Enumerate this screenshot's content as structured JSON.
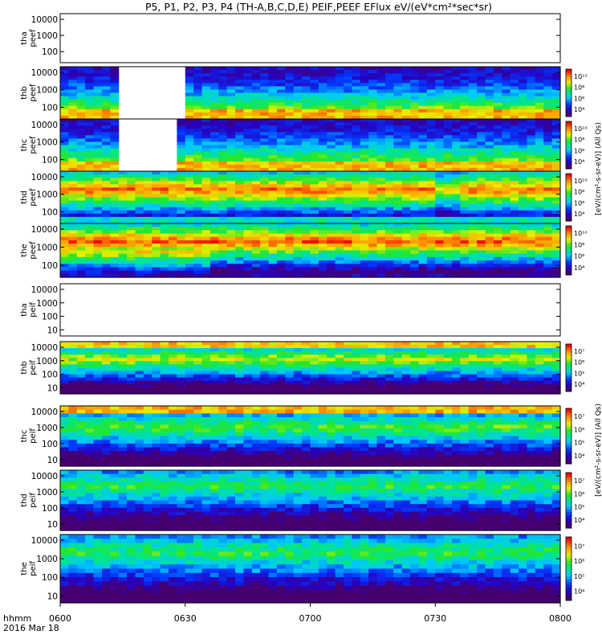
{
  "chart_data": {
    "type": "heatmap",
    "title": "P5, P1, P2, P3, P4 (TH-A,B,C,D,E) PEIF,PEEF EFlux eV/(eV*cm²*sec*sr)",
    "x_ticks": [
      "0600",
      "0630",
      "0700",
      "0730",
      "0800"
    ],
    "x_ticks_minutes": [
      360,
      390,
      420,
      450,
      480
    ],
    "xlim": [
      360,
      480
    ],
    "x_prefix": "hhmm",
    "date_label": "2016 Mar 18",
    "scale": "log",
    "colorbar_ticks_electron": [
      "10⁴",
      "10⁶",
      "10⁸",
      "10¹⁰"
    ],
    "colorbar_ticks_ion": [
      "10⁴",
      "10⁵",
      "10⁶",
      "10⁷"
    ],
    "colorbar_label_electron": "[eV/(cm²-s-sr-eV)] (All Qs)",
    "colorbar_label_ion": "[eV/(cm²-s-sr-eV)] (All Qs)",
    "panels": [
      {
        "probe": "tha",
        "label": "tha peef",
        "y_ticks": [
          "10000",
          "1000",
          "100"
        ],
        "data": false
      },
      {
        "probe": "thb",
        "label": "thb peef",
        "y_ticks": [
          "10000",
          "1000",
          "100"
        ],
        "data": true,
        "gaps": [
          [
            373.5,
            389
          ]
        ]
      },
      {
        "probe": "thc",
        "label": "thc peef",
        "y_ticks": [
          "10000",
          "1000",
          "100"
        ],
        "data": true,
        "gaps": [
          [
            373.5,
            388
          ]
        ]
      },
      {
        "probe": "thd",
        "label": "thd peef",
        "y_ticks": [
          "10000",
          "1000",
          "100"
        ],
        "data": true,
        "gaps": []
      },
      {
        "probe": "the",
        "label": "the peef",
        "y_ticks": [
          "10000",
          "1000",
          "100"
        ],
        "data": true,
        "gaps": []
      },
      {
        "probe": "tha",
        "label": "tha peif",
        "y_ticks": [
          "10000",
          "1000",
          "100",
          "10"
        ],
        "data": false
      },
      {
        "probe": "thb",
        "label": "thb peif",
        "y_ticks": [
          "10000",
          "1000",
          "100",
          "10"
        ],
        "data": true,
        "gaps": []
      },
      {
        "probe": "thc",
        "label": "thc peif",
        "y_ticks": [
          "10000",
          "1000",
          "100",
          "10"
        ],
        "data": true,
        "gaps": []
      },
      {
        "probe": "thd",
        "label": "thd peif",
        "y_ticks": [
          "10000",
          "1000",
          "100",
          "10"
        ],
        "data": true,
        "gaps": []
      },
      {
        "probe": "the",
        "label": "the peif",
        "y_ticks": [
          "10000",
          "1000",
          "100",
          "10"
        ],
        "data": true,
        "gaps": []
      }
    ]
  }
}
